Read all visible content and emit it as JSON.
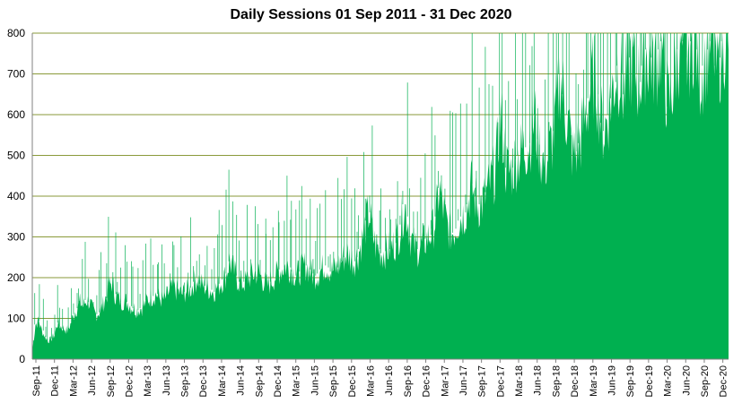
{
  "chart_data": {
    "type": "area",
    "title": "Daily Sessions 01 Sep 2011 - 31 Dec 2020",
    "xlabel": "",
    "ylabel": "",
    "ylim": [
      0,
      800
    ],
    "y_ticks": [
      "0",
      "100",
      "200",
      "300",
      "400",
      "500",
      "600",
      "700",
      "800"
    ],
    "x_ticks": [
      "Sep-11",
      "Dec-11",
      "Mar-12",
      "Jun-12",
      "Sep-12",
      "Dec-12",
      "Mar-13",
      "Jun-13",
      "Sep-13",
      "Dec-13",
      "Mar-14",
      "Jun-14",
      "Sep-14",
      "Dec-14",
      "Mar-15",
      "Jun-15",
      "Sep-15",
      "Dec-15",
      "Mar-16",
      "Jun-16",
      "Sep-16",
      "Dec-16",
      "Mar-17",
      "Jun-17",
      "Sep-17",
      "Dec-17",
      "Mar-18",
      "Jun-18",
      "Sep-18",
      "Dec-18",
      "Mar-19",
      "Jun-19",
      "Sep-19",
      "Dec-19",
      "Mar-20",
      "Jun-20",
      "Sep-20",
      "Dec-20"
    ],
    "grid": true,
    "legend": "none",
    "series_color": "#00b050",
    "grid_color": "#8a9a3a",
    "series": [
      {
        "x_start": "2011-09-01",
        "x_end": "2020-12-31",
        "resolution": "semi-monthly",
        "values": [
          20,
          85,
          95,
          70,
          55,
          45,
          50,
          60,
          90,
          80,
          75,
          70,
          85,
          110,
          125,
          140,
          130,
          145,
          140,
          120,
          110,
          115,
          130,
          150,
          175,
          190,
          160,
          150,
          140,
          145,
          140,
          130,
          125,
          120,
          125,
          130,
          145,
          150,
          155,
          160,
          150,
          145,
          150,
          165,
          175,
          170,
          165,
          160,
          165,
          170,
          175,
          190,
          200,
          185,
          180,
          175,
          170,
          165,
          175,
          185,
          195,
          210,
          240,
          225,
          205,
          190,
          185,
          190,
          200,
          205,
          210,
          215,
          200,
          190,
          180,
          190,
          200,
          210,
          220,
          225,
          230,
          225,
          215,
          205,
          215,
          225,
          230,
          220,
          210,
          205,
          210,
          220,
          230,
          225,
          215,
          220,
          225,
          240,
          250,
          260,
          250,
          240,
          250,
          270,
          300,
          340,
          360,
          310,
          280,
          270,
          260,
          265,
          270,
          275,
          285,
          300,
          330,
          380,
          350,
          300,
          280,
          270,
          275,
          285,
          295,
          305,
          320,
          350,
          420,
          380,
          340,
          320,
          310,
          320,
          340,
          350,
          360,
          380,
          430,
          400,
          380,
          380,
          390,
          410,
          430,
          450,
          480,
          600,
          560,
          470,
          460,
          470,
          490,
          500,
          510,
          520,
          530,
          560,
          600,
          540,
          500,
          480,
          490,
          520,
          560,
          620,
          700,
          650,
          600,
          560,
          500,
          510,
          530,
          560,
          600,
          640,
          680,
          720,
          650,
          580,
          560,
          600,
          640,
          680,
          720,
          700,
          650,
          690,
          740,
          720,
          700,
          680,
          720,
          760,
          740,
          740,
          720,
          760,
          780,
          700,
          620,
          650,
          700,
          760,
          780,
          720,
          740,
          780,
          800,
          760,
          700,
          720,
          760,
          780,
          800,
          720,
          740,
          780,
          800,
          760
        ]
      }
    ]
  }
}
